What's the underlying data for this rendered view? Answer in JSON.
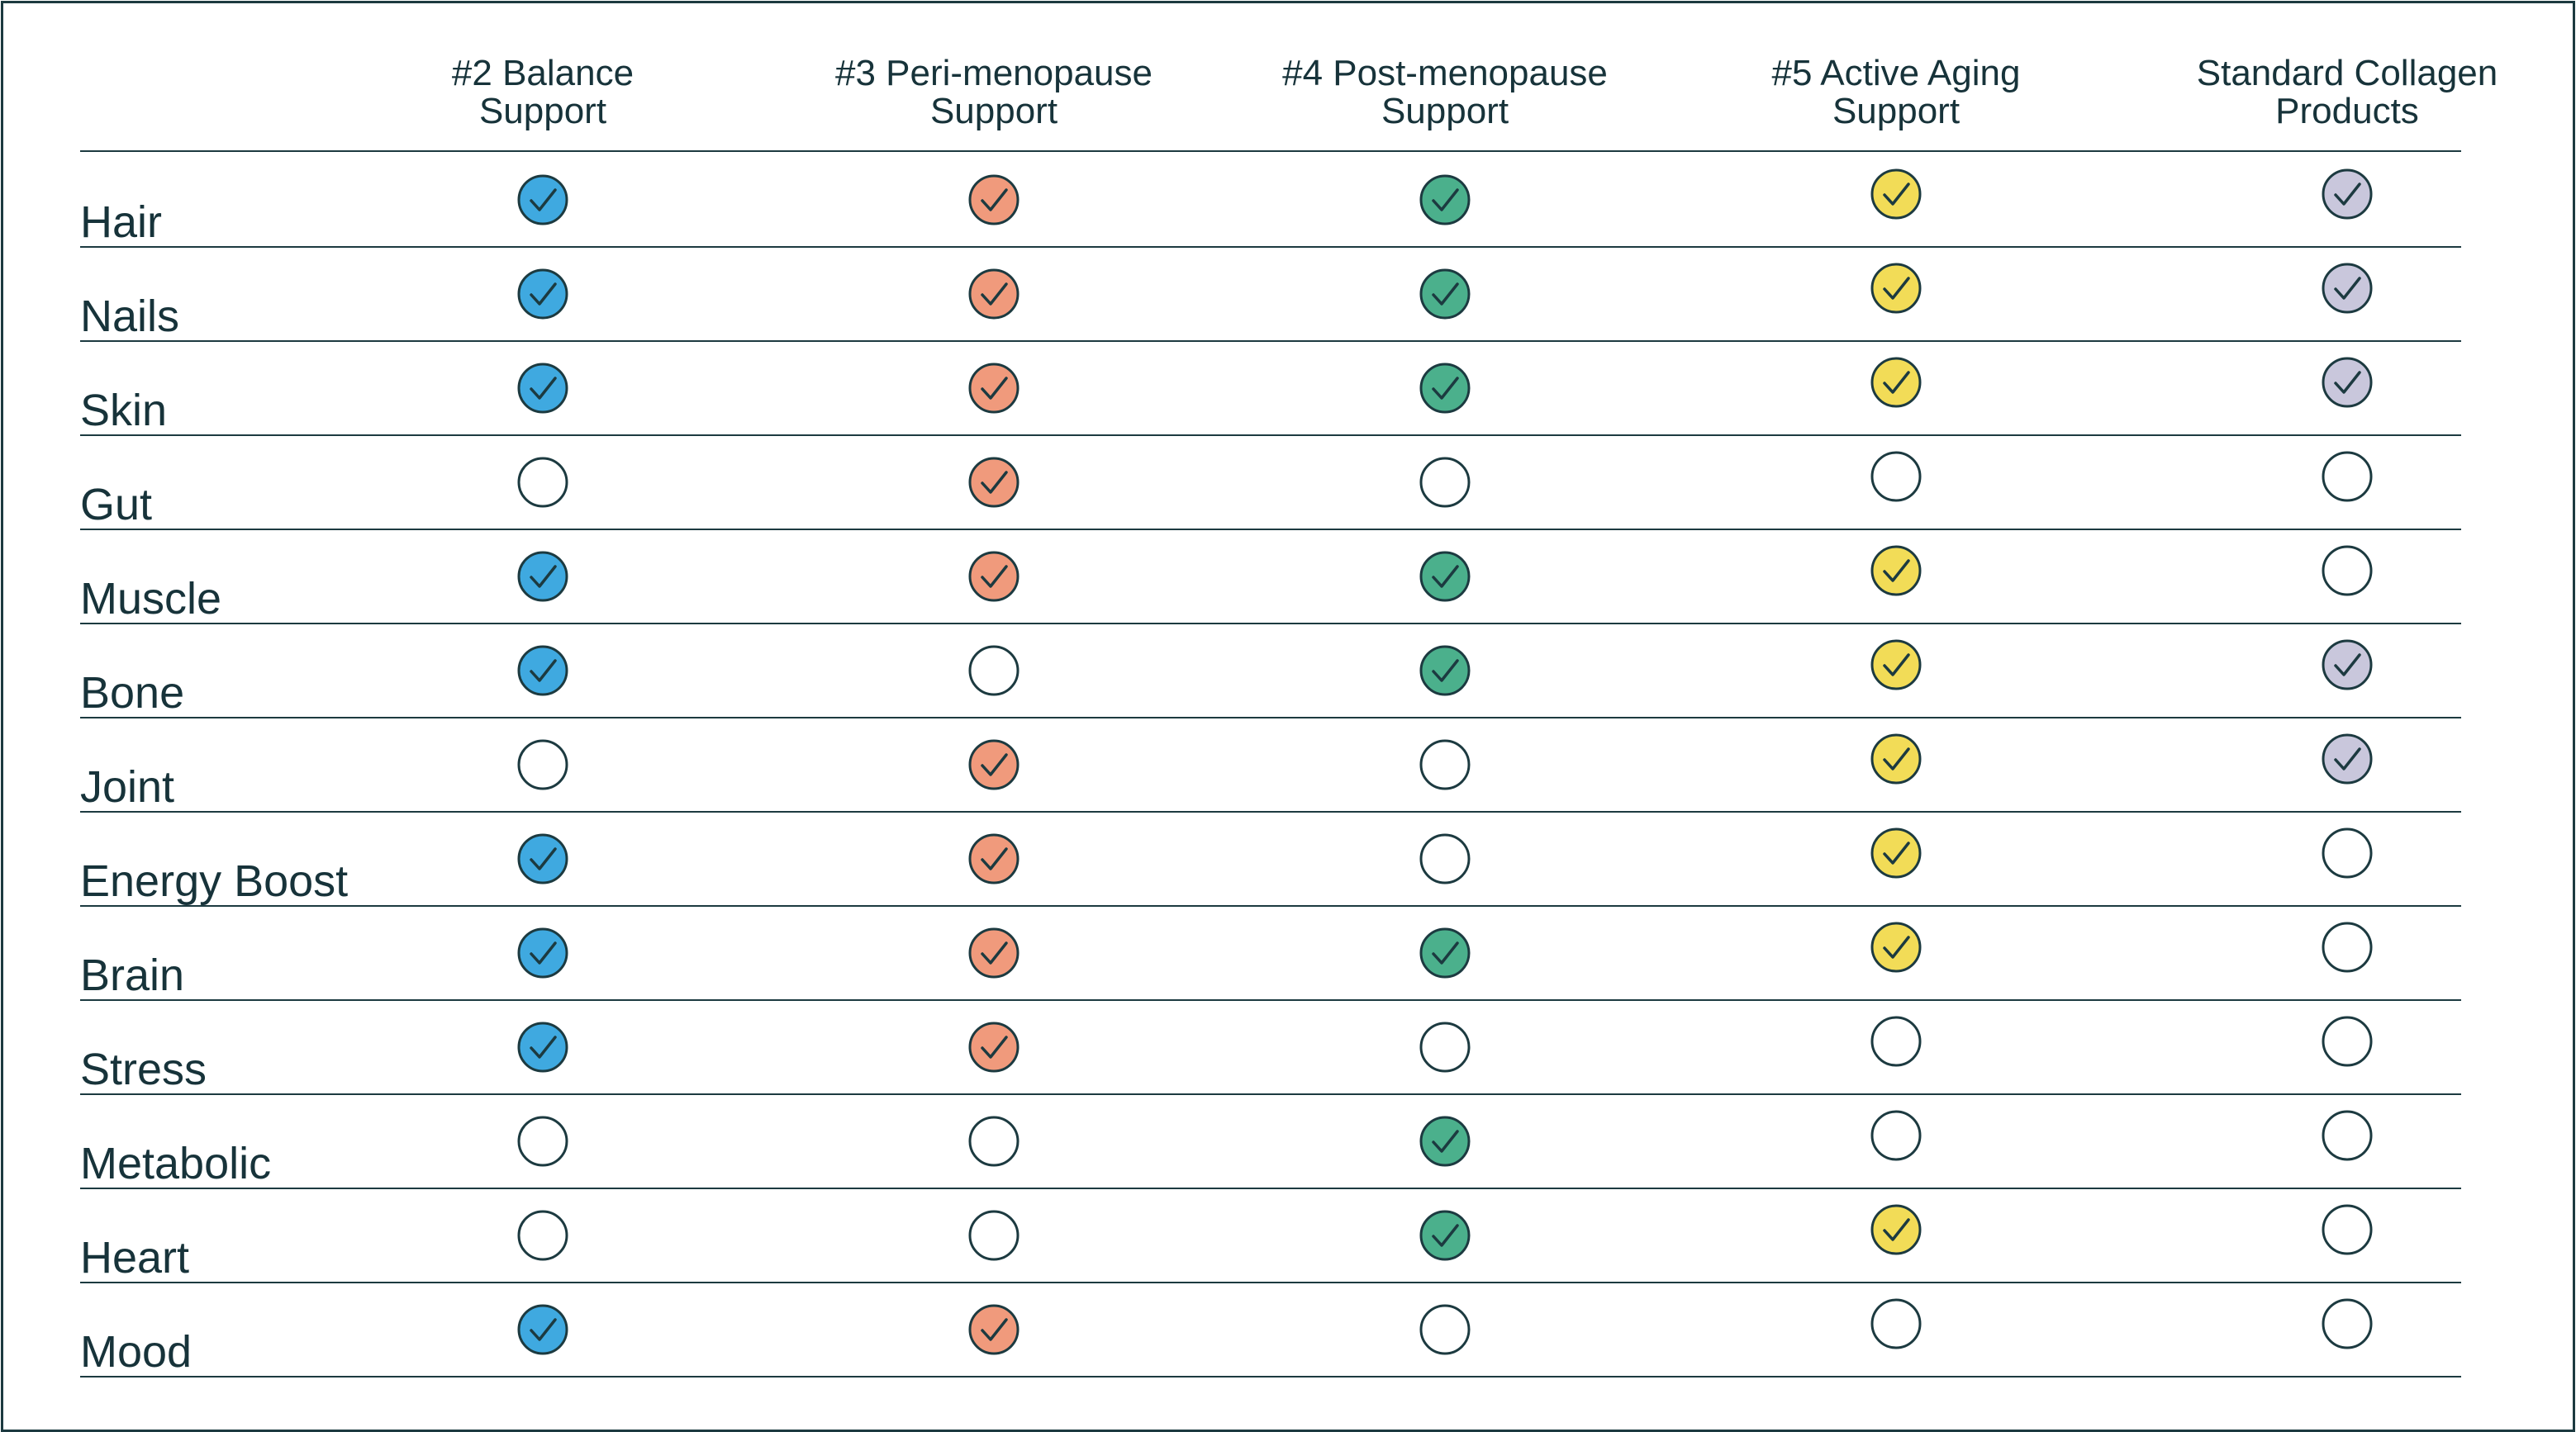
{
  "columns": [
    {
      "label": "#2 Balance\nSupport",
      "color": "#3fa9e0"
    },
    {
      "label": "#3 Peri-menopause\nSupport",
      "color": "#f09a7c"
    },
    {
      "label": "#4 Post-menopause\nSupport",
      "color": "#4bb08c"
    },
    {
      "label": "#5 Active Aging\nSupport",
      "color": "#f2dc57"
    },
    {
      "label": "Standard Collagen\nProducts",
      "color": "#c9c7dc"
    }
  ],
  "rows": [
    {
      "label": "Hair",
      "checks": [
        true,
        true,
        true,
        true,
        true
      ]
    },
    {
      "label": "Nails",
      "checks": [
        true,
        true,
        true,
        true,
        true
      ]
    },
    {
      "label": "Skin",
      "checks": [
        true,
        true,
        true,
        true,
        true
      ]
    },
    {
      "label": "Gut",
      "checks": [
        false,
        true,
        false,
        false,
        false
      ]
    },
    {
      "label": "Muscle",
      "checks": [
        true,
        true,
        true,
        true,
        false
      ]
    },
    {
      "label": "Bone",
      "checks": [
        true,
        false,
        true,
        true,
        true
      ]
    },
    {
      "label": "Joint",
      "checks": [
        false,
        true,
        false,
        true,
        true
      ]
    },
    {
      "label": "Energy Boost",
      "checks": [
        true,
        true,
        false,
        true,
        false
      ]
    },
    {
      "label": "Brain",
      "checks": [
        true,
        true,
        true,
        true,
        false
      ]
    },
    {
      "label": "Stress",
      "checks": [
        true,
        true,
        false,
        false,
        false
      ]
    },
    {
      "label": "Metabolic",
      "checks": [
        false,
        false,
        true,
        false,
        false
      ]
    },
    {
      "label": "Heart",
      "checks": [
        false,
        false,
        true,
        true,
        false
      ]
    },
    {
      "label": "Mood",
      "checks": [
        true,
        true,
        false,
        false,
        false
      ]
    }
  ],
  "colors": {
    "ink": "#17333a",
    "line": "#1c3a40",
    "empty_fill": "#ffffff"
  },
  "icons": {
    "checked": "check-circle-icon",
    "unchecked": "empty-circle-icon"
  }
}
